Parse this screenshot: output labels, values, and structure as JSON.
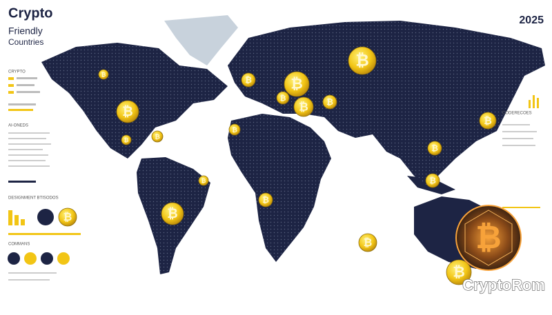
{
  "header": {
    "title": "Crypto",
    "subtitle_lines": [
      "Friendly",
      "Countries"
    ]
  },
  "year": "2025",
  "watermark": "CryptoRom",
  "left_panel": {
    "labels": [
      "CRYPTO",
      "AI-ONEDS",
      "DESIGNMENT BTISODOS",
      "COMMANS"
    ]
  },
  "right_panel": {
    "labels": [
      "CODERECOES"
    ]
  },
  "coin_symbol": "₿"
}
